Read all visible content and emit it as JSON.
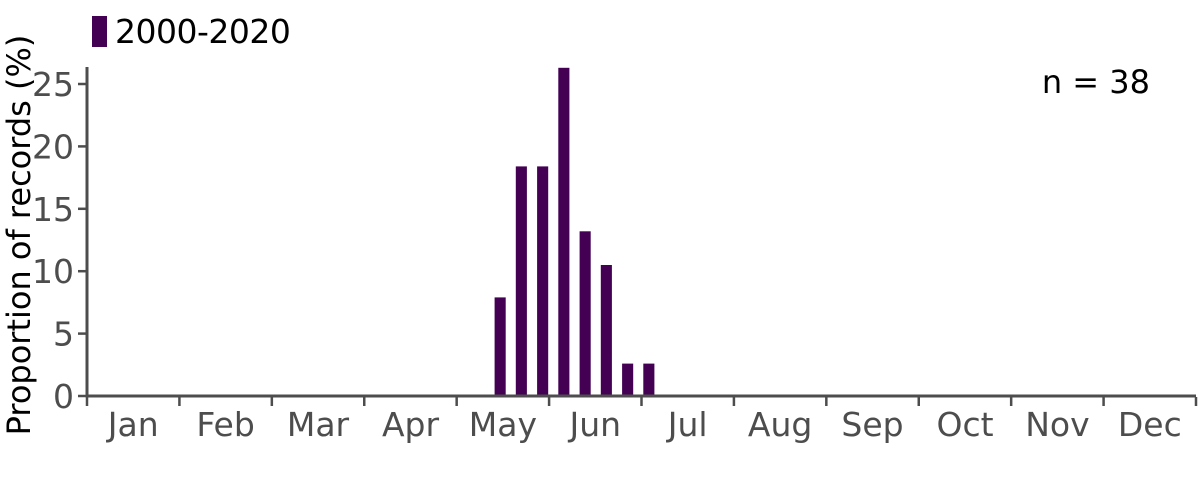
{
  "chart_data": {
    "type": "bar",
    "title": "",
    "xlabel": "",
    "ylabel": "Proportion of records (%)",
    "annotation": {
      "text": "n = 38",
      "position": "top-right"
    },
    "sample_size": 38,
    "legend": {
      "position": "top-left",
      "entries": [
        {
          "label": "2000-2020",
          "color": "#440154"
        }
      ]
    },
    "x_axis": {
      "tick_labels": [
        "Jan",
        "Feb",
        "Mar",
        "Apr",
        "May",
        "Jun",
        "Jul",
        "Aug",
        "Sep",
        "Oct",
        "Nov",
        "Dec"
      ],
      "boundary_tick_count": 13,
      "range_months": [
        0,
        12
      ]
    },
    "y_axis": {
      "ticks": [
        0,
        5,
        10,
        15,
        20,
        25
      ],
      "range": [
        0,
        26.5
      ],
      "unit": "%"
    },
    "grid": false,
    "series": [
      {
        "name": "2000-2020",
        "color": "#440154",
        "bar_width_months": 0.12,
        "points": [
          {
            "x_month": 4.47,
            "value": 7.9
          },
          {
            "x_month": 4.7,
            "value": 18.4
          },
          {
            "x_month": 4.93,
            "value": 18.4
          },
          {
            "x_month": 5.16,
            "value": 26.3
          },
          {
            "x_month": 5.39,
            "value": 13.2
          },
          {
            "x_month": 5.62,
            "value": 10.5
          },
          {
            "x_month": 5.85,
            "value": 2.6
          },
          {
            "x_month": 6.08,
            "value": 2.6
          }
        ]
      }
    ],
    "colors": {
      "bar": "#440154",
      "axis": "#4d4d4d",
      "tick_text": "#4d4d4d",
      "text": "#000000",
      "background": "#ffffff"
    }
  }
}
